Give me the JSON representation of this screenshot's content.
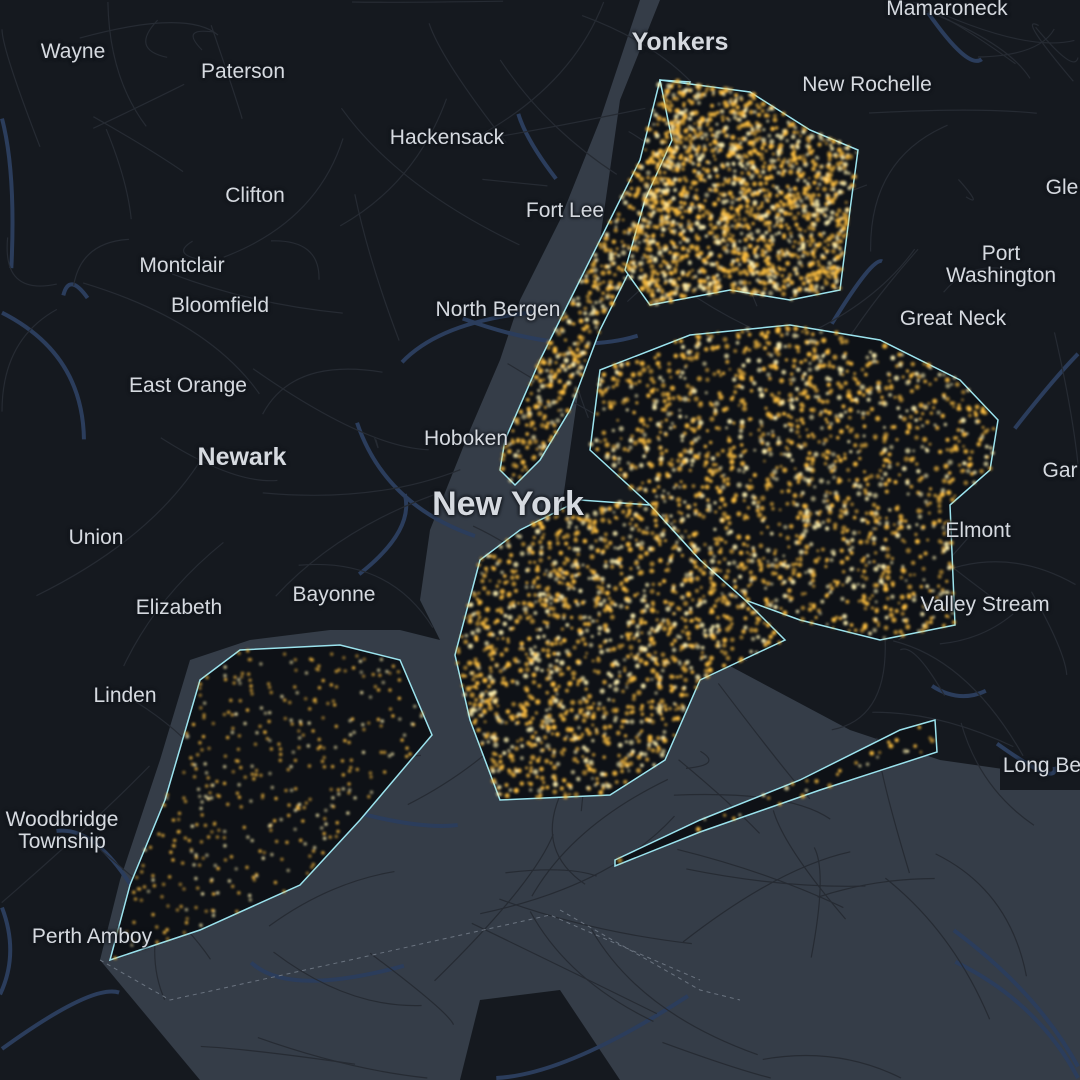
{
  "colors": {
    "water": "#353d48",
    "land": "#15191f",
    "highway": "#2b3d5c",
    "road": "#262b33",
    "boundary": "#9be3ee",
    "glow": "#ffc040"
  },
  "labels": {
    "mamaroneck": "Mamaroneck",
    "yonkers": "Yonkers",
    "new_rochelle": "New Rochelle",
    "wayne": "Wayne",
    "paterson": "Paterson",
    "hackensack": "Hackensack",
    "clifton": "Clifton",
    "fort_lee": "Fort Lee",
    "glen_cove": "Gle",
    "port_washington": "Port\nWashington",
    "montclair": "Montclair",
    "bloomfield": "Bloomfield",
    "north_bergen": "North Bergen",
    "great_neck": "Great Neck",
    "east_orange": "East Orange",
    "hoboken": "Hoboken",
    "newark": "Newark",
    "new_york": "New York",
    "garden_city": "Gar",
    "union": "Union",
    "elmont": "Elmont",
    "elizabeth": "Elizabeth",
    "bayonne": "Bayonne",
    "valley_stream": "Valley Stream",
    "linden": "Linden",
    "woodbridge": "Woodbridge\nTownship",
    "perth_amboy": "Perth Amboy",
    "long_beach": "Long Be"
  }
}
